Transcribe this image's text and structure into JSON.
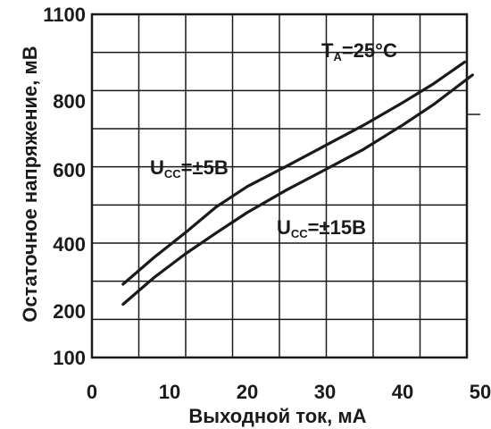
{
  "chart_data": {
    "type": "line",
    "xlabel": "Выходной ток, мА",
    "ylabel": "Остаточное напряжение, мВ",
    "x_ticks": [
      0,
      10,
      20,
      30,
      40,
      50
    ],
    "y_ticks": [
      100,
      200,
      400,
      600,
      800,
      1100
    ],
    "grid": true,
    "series": [
      {
        "name": "Ucc=±5В",
        "label_main": "U",
        "label_sub": "CC",
        "label_rest": "=±5В",
        "x": [
          4,
          8,
          12,
          16,
          20,
          25,
          30,
          35,
          40,
          44,
          48
        ],
        "y": [
          280,
          360,
          430,
          500,
          555,
          610,
          670,
          730,
          795,
          860,
          935
        ]
      },
      {
        "name": "Ucc=±15В",
        "label_main": "U",
        "label_sub": "CC",
        "label_rest": "=±15В",
        "x": [
          4,
          8,
          12,
          16,
          20,
          25,
          30,
          35,
          40,
          44,
          49
        ],
        "y": [
          220,
          300,
          370,
          430,
          485,
          545,
          600,
          660,
          730,
          790,
          890
        ]
      }
    ],
    "annotation": {
      "main": "T",
      "sub": "A",
      "rest": "=25°C"
    }
  }
}
